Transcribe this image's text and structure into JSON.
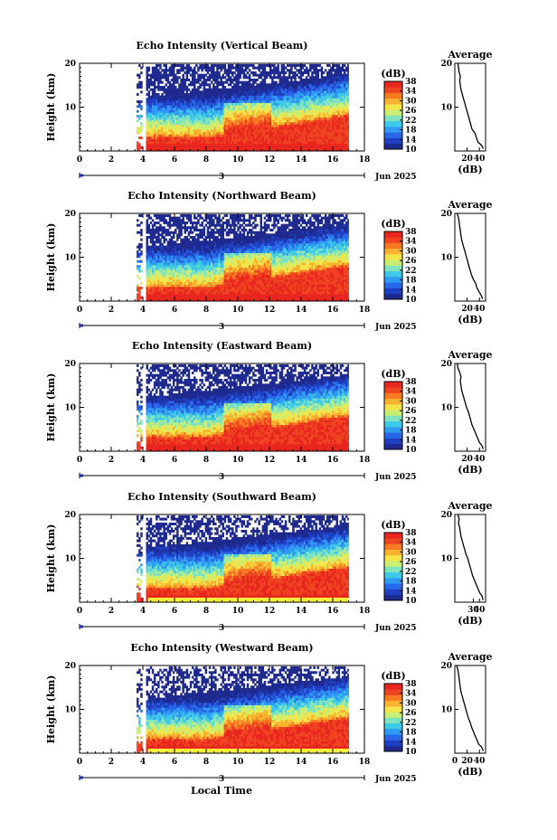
{
  "figure": {
    "xlabel_bottom": "Local Time",
    "colorbar_unit": "(dB)",
    "colorbar_ticks": [
      "10",
      "14",
      "18",
      "22",
      "26",
      "30",
      "34",
      "38"
    ],
    "avg_title": "Average",
    "avg_unit": "(dB)",
    "date_label": "Jun 2025",
    "day_label": "3",
    "colormap": [
      "#1f2a8f",
      "#1f3fc2",
      "#2a67e8",
      "#2f9bf2",
      "#3fc9e8",
      "#7fe3c0",
      "#c8ef73",
      "#f3e44a",
      "#f8b22f",
      "#f67a22",
      "#ef4421",
      "#e8261f"
    ],
    "series_color": "#000000",
    "rain_color": "#ff3a2a",
    "bottom_band_color": "#f6f03a"
  },
  "chart_data": [
    {
      "type": "heatmap",
      "title": "Echo Intensity (Vertical Beam)",
      "ylabel": "Height (km)",
      "x_ticks": [
        "0",
        "2",
        "4",
        "6",
        "8",
        "10",
        "12",
        "14",
        "16",
        "18"
      ],
      "y_ticks": [
        "10",
        "20"
      ],
      "xlim": [
        0,
        18
      ],
      "ylim": [
        0,
        20
      ],
      "data_start_hour": 3.6,
      "data_end_hour": 17,
      "gap_hours": [
        3.9,
        4.1
      ],
      "clim": [
        10,
        38
      ],
      "profile": {
        "height_km": [
          0.5,
          1,
          1.5,
          2,
          3,
          4,
          5,
          6,
          7,
          8,
          9,
          10,
          11,
          12,
          13,
          14,
          15,
          16,
          17,
          18,
          19,
          20
        ],
        "avg_db": [
          46,
          45,
          42,
          38,
          35,
          33,
          28,
          26,
          24,
          22,
          20,
          18,
          16,
          14,
          12,
          10,
          9,
          8,
          9,
          7,
          6,
          5
        ],
        "xticks": [
          "20",
          "40"
        ],
        "xlim": [
          0,
          50
        ]
      }
    },
    {
      "type": "heatmap",
      "title": "Echo Intensity (Northward Beam)",
      "ylabel": "Height (km)",
      "x_ticks": [
        "0",
        "2",
        "4",
        "6",
        "8",
        "10",
        "12",
        "14",
        "16",
        "18"
      ],
      "y_ticks": [
        "10",
        "20"
      ],
      "xlim": [
        0,
        18
      ],
      "ylim": [
        0,
        20
      ],
      "data_start_hour": 3.6,
      "data_end_hour": 17,
      "gap_hours": [
        3.9,
        4.1
      ],
      "clim": [
        10,
        38
      ],
      "profile": {
        "height_km": [
          0.5,
          1,
          1.5,
          2,
          3,
          4,
          5,
          6,
          7,
          8,
          9,
          10,
          11,
          12,
          13,
          14,
          15,
          16,
          17,
          18,
          19,
          20
        ],
        "avg_db": [
          45,
          44,
          42,
          40,
          36,
          34,
          30,
          27,
          25,
          23,
          21,
          19,
          17,
          15,
          13,
          11,
          10,
          9,
          8,
          7,
          6,
          4
        ],
        "xticks": [
          "20",
          "40"
        ],
        "xlim": [
          0,
          50
        ]
      }
    },
    {
      "type": "heatmap",
      "title": "Echo Intensity (Eastward Beam)",
      "ylabel": "Height (km)",
      "x_ticks": [
        "0",
        "2",
        "4",
        "6",
        "8",
        "10",
        "12",
        "14",
        "16",
        "18"
      ],
      "y_ticks": [
        "10",
        "20"
      ],
      "xlim": [
        0,
        18
      ],
      "ylim": [
        0,
        20
      ],
      "data_start_hour": 3.6,
      "data_end_hour": 17,
      "gap_hours": [
        3.9,
        4.1
      ],
      "clim": [
        10,
        38
      ],
      "profile": {
        "height_km": [
          0.5,
          1,
          1.5,
          2,
          3,
          4,
          5,
          6,
          7,
          8,
          9,
          10,
          11,
          12,
          13,
          14,
          15,
          16,
          17,
          18,
          19,
          20
        ],
        "avg_db": [
          46,
          45,
          43,
          40,
          37,
          34,
          31,
          28,
          26,
          24,
          22,
          19,
          17,
          15,
          13,
          11,
          10,
          9,
          10,
          8,
          5,
          4
        ],
        "xticks": [
          "20",
          "40"
        ],
        "xlim": [
          0,
          50
        ]
      }
    },
    {
      "type": "heatmap",
      "title": "Echo Intensity (Southward Beam)",
      "ylabel": "Height (km)",
      "x_ticks": [
        "0",
        "2",
        "4",
        "6",
        "8",
        "10",
        "12",
        "14",
        "16",
        "18"
      ],
      "y_ticks": [
        "10",
        "20"
      ],
      "xlim": [
        0,
        18
      ],
      "ylim": [
        0,
        20
      ],
      "data_start_hour": 3.6,
      "data_end_hour": 17,
      "gap_hours": [
        3.9,
        4.1
      ],
      "clim": [
        10,
        38
      ],
      "profile": {
        "height_km": [
          0.5,
          1,
          1.5,
          2,
          3,
          4,
          5,
          6,
          7,
          8,
          9,
          10,
          11,
          12,
          13,
          14,
          15,
          16,
          17,
          18,
          19,
          20
        ],
        "avg_db": [
          46,
          45,
          44,
          41,
          38,
          35,
          32,
          29,
          27,
          25,
          23,
          21,
          18,
          16,
          14,
          12,
          10,
          9,
          8,
          6,
          7,
          5
        ],
        "xticks": [
          "30",
          "40"
        ],
        "xlim": [
          0,
          50
        ]
      }
    },
    {
      "type": "heatmap",
      "title": "Echo Intensity (Westward Beam)",
      "ylabel": "Height (km)",
      "x_ticks": [
        "0",
        "2",
        "4",
        "6",
        "8",
        "10",
        "12",
        "14",
        "16",
        "18"
      ],
      "y_ticks": [
        "10",
        "20"
      ],
      "xlim": [
        0,
        18
      ],
      "ylim": [
        0,
        20
      ],
      "data_start_hour": 3.6,
      "data_end_hour": 17,
      "gap_hours": [
        3.9,
        4.1
      ],
      "clim": [
        10,
        38
      ],
      "profile": {
        "height_km": [
          0.5,
          1,
          1.5,
          2,
          3,
          4,
          5,
          6,
          7,
          8,
          9,
          10,
          11,
          12,
          13,
          14,
          15,
          16,
          17,
          18,
          19,
          20
        ],
        "avg_db": [
          46,
          45,
          43,
          39,
          36,
          33,
          30,
          27,
          25,
          22,
          20,
          18,
          16,
          14,
          12,
          10,
          9,
          8,
          7,
          6,
          5,
          3
        ],
        "xticks": [
          "0",
          "20",
          "40"
        ],
        "xlim": [
          0,
          50
        ]
      }
    }
  ]
}
